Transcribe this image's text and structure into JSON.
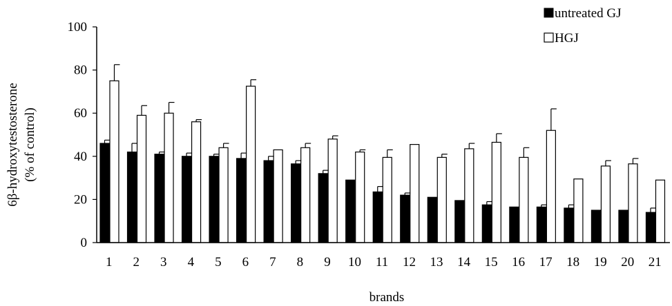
{
  "chart_data": {
    "type": "bar",
    "title": "",
    "xlabel": "brands",
    "ylabel_lines": [
      "6β-hydroxytestosterone",
      "(% of control)"
    ],
    "ylim": [
      0,
      100
    ],
    "yticks": [
      0,
      20,
      40,
      60,
      80,
      100
    ],
    "grid": false,
    "legend_position": "top-right",
    "categories": [
      "1",
      "2",
      "3",
      "4",
      "5",
      "6",
      "7",
      "8",
      "9",
      "10",
      "11",
      "12",
      "13",
      "14",
      "15",
      "16",
      "17",
      "18",
      "19",
      "20",
      "21"
    ],
    "series": [
      {
        "name": "untreated GJ",
        "fill": "#000000",
        "values": [
          46,
          42,
          41,
          40,
          40,
          39,
          38,
          36.5,
          32,
          29,
          23.5,
          22,
          21,
          19.5,
          17.5,
          16.5,
          16.5,
          16,
          15,
          15,
          14
        ],
        "errors": [
          1.5,
          4,
          1,
          1.5,
          1,
          2.5,
          2,
          1.5,
          1.5,
          0,
          2.5,
          1,
          0,
          0,
          1.5,
          0,
          1,
          1.5,
          0,
          0,
          2
        ]
      },
      {
        "name": "HGJ",
        "fill": "#ffffff",
        "values": [
          75,
          59,
          60,
          56,
          44,
          72.5,
          43,
          44,
          48,
          42,
          39.5,
          45.5,
          39.5,
          43.5,
          46.5,
          39.5,
          52,
          29.5,
          35.5,
          36.5,
          29
        ],
        "errors": [
          7.5,
          4.5,
          5,
          1,
          2,
          3,
          0,
          2,
          1.5,
          1,
          3.5,
          0,
          1.5,
          2.5,
          4,
          4.5,
          10,
          0,
          2.5,
          2.5,
          0
        ]
      }
    ]
  }
}
